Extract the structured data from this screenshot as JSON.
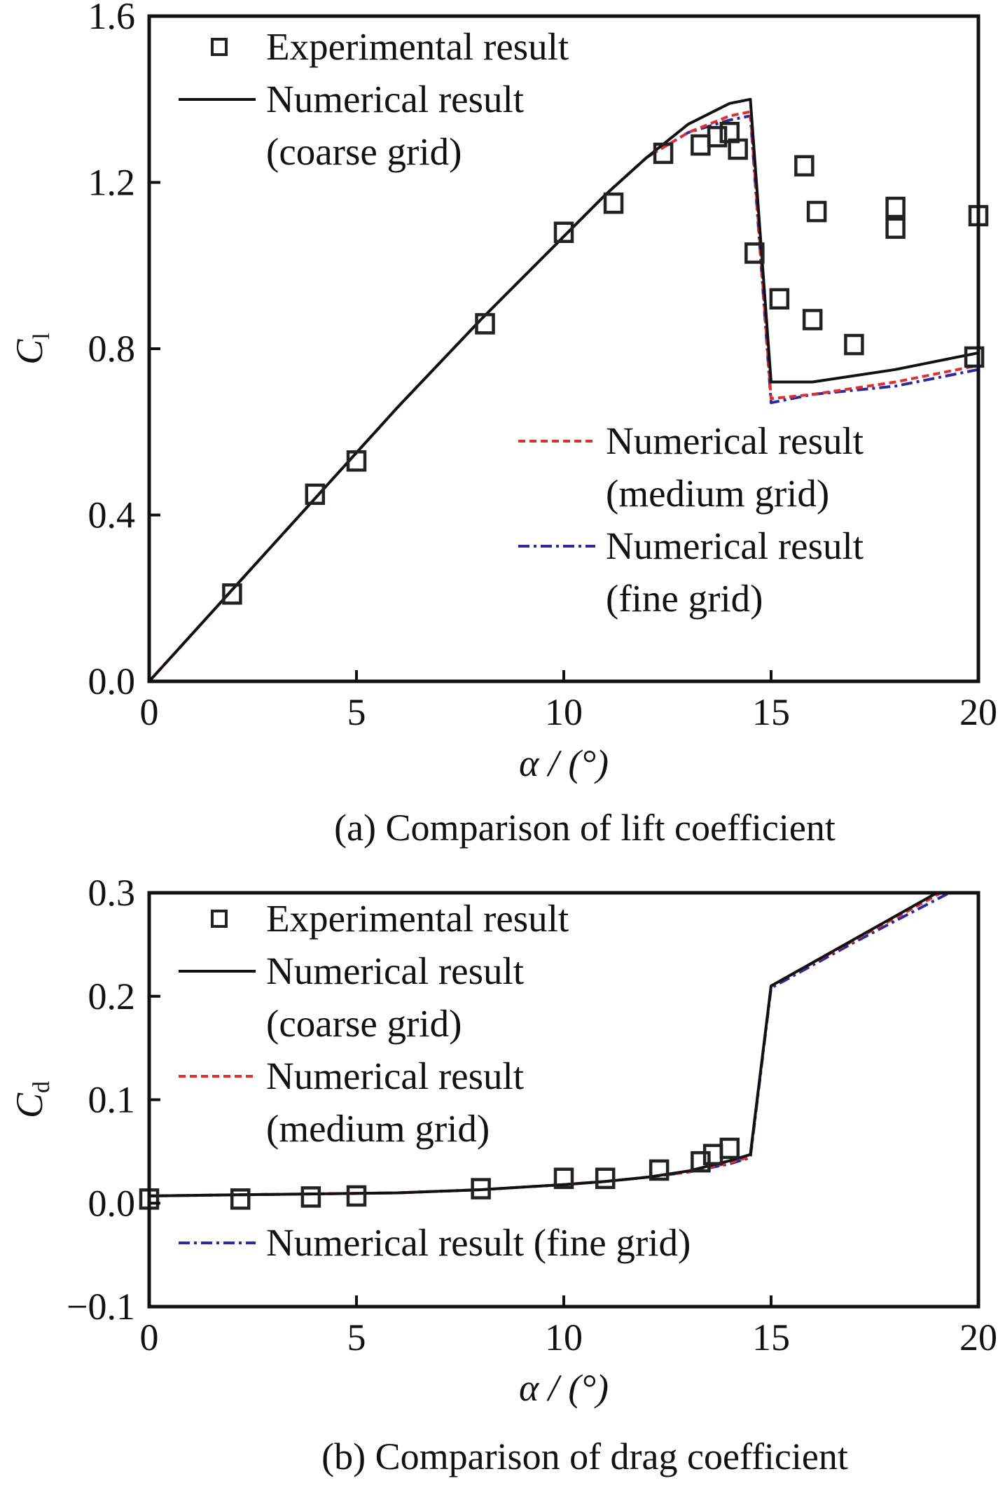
{
  "chart_data": [
    {
      "type": "line",
      "panel": "a",
      "caption": "(a) Comparison of lift coefficient",
      "xlabel": "α / (°)",
      "ylabel_main": "C",
      "ylabel_sub": "l",
      "xlim": [
        0,
        20
      ],
      "ylim": [
        0.0,
        1.6
      ],
      "xticks": [
        0,
        5,
        10,
        15,
        20
      ],
      "xtick_labels": [
        "0",
        "5",
        "10",
        "15",
        "20"
      ],
      "yticks": [
        0.0,
        0.4,
        0.8,
        1.2,
        1.6
      ],
      "ytick_labels": [
        "0.0",
        "0.4",
        "0.8",
        "1.2",
        "1.6"
      ],
      "grid": false,
      "legend": [
        {
          "key": "exp",
          "label_lines": [
            "Experimental result"
          ],
          "placement": "top-left"
        },
        {
          "key": "coarse",
          "label_lines": [
            "Numerical result",
            "(coarse grid)"
          ],
          "placement": "top-left"
        },
        {
          "key": "medium",
          "label_lines": [
            "Numerical result",
            "(medium grid)"
          ],
          "placement": "lower-right"
        },
        {
          "key": "fine",
          "label_lines": [
            "Numerical result",
            "(fine grid)"
          ],
          "placement": "lower-right"
        }
      ],
      "series": [
        {
          "key": "exp",
          "name": "Experimental result",
          "style": "square-marker",
          "color": "#222222",
          "x": [
            2.0,
            4.0,
            5.0,
            8.1,
            10.0,
            11.2,
            12.4,
            13.3,
            13.7,
            14.0,
            14.2,
            14.6,
            15.2,
            15.8,
            16.0,
            16.1,
            17.0,
            18.0,
            18.0,
            20.0,
            19.9
          ],
          "y": [
            0.21,
            0.45,
            0.53,
            0.86,
            1.08,
            1.15,
            1.27,
            1.29,
            1.31,
            1.32,
            1.28,
            1.03,
            0.92,
            1.24,
            0.87,
            1.13,
            0.81,
            1.14,
            1.09,
            1.12,
            0.78
          ]
        },
        {
          "key": "coarse",
          "name": "Numerical result (coarse grid)",
          "style": "solid",
          "color": "#111111",
          "x": [
            0,
            2,
            4,
            6,
            8,
            10,
            11,
            12,
            13,
            14,
            14.5,
            15.0,
            16,
            18,
            20
          ],
          "y": [
            0.0,
            0.22,
            0.44,
            0.66,
            0.87,
            1.07,
            1.17,
            1.26,
            1.34,
            1.39,
            1.4,
            0.72,
            0.72,
            0.75,
            0.79
          ]
        },
        {
          "key": "medium",
          "name": "Numerical result (medium grid)",
          "style": "dashed",
          "color": "#e03030",
          "x": [
            0,
            2,
            4,
            6,
            8,
            10,
            11,
            12,
            13,
            14,
            14.5,
            15.0,
            16,
            18,
            20
          ],
          "y": [
            0.0,
            0.22,
            0.44,
            0.66,
            0.87,
            1.07,
            1.17,
            1.26,
            1.32,
            1.36,
            1.37,
            0.68,
            0.69,
            0.72,
            0.76
          ]
        },
        {
          "key": "fine",
          "name": "Numerical result (fine grid)",
          "style": "dash-dot",
          "color": "#2a2aa0",
          "x": [
            0,
            2,
            4,
            6,
            8,
            10,
            11,
            12,
            13,
            14,
            14.5,
            15.0,
            16,
            18,
            20
          ],
          "y": [
            0.0,
            0.22,
            0.44,
            0.66,
            0.87,
            1.07,
            1.17,
            1.26,
            1.32,
            1.35,
            1.36,
            0.67,
            0.69,
            0.71,
            0.75
          ]
        }
      ]
    },
    {
      "type": "line",
      "panel": "b",
      "caption": "(b) Comparison of drag coefficient",
      "xlabel": "α / (°)",
      "ylabel_main": "C",
      "ylabel_sub": "d",
      "xlim": [
        0,
        20
      ],
      "ylim": [
        -0.1,
        0.3
      ],
      "xticks": [
        0,
        5,
        10,
        15,
        20
      ],
      "xtick_labels": [
        "0",
        "5",
        "10",
        "15",
        "20"
      ],
      "yticks": [
        -0.1,
        0.0,
        0.1,
        0.2,
        0.3
      ],
      "ytick_labels": [
        "−0.1",
        "0.0",
        "0.1",
        "0.2",
        "0.3"
      ],
      "grid": false,
      "legend": [
        {
          "key": "exp",
          "label_lines": [
            "Experimental result"
          ],
          "placement": "top-left"
        },
        {
          "key": "coarse",
          "label_lines": [
            "Numerical result",
            "(coarse grid)"
          ],
          "placement": "top-left"
        },
        {
          "key": "medium",
          "label_lines": [
            "Numerical result",
            "(medium grid)"
          ],
          "placement": "top-left"
        },
        {
          "key": "fine",
          "label_lines": [
            "Numerical result (fine grid)"
          ],
          "placement": "lower-left"
        }
      ],
      "series": [
        {
          "key": "exp",
          "name": "Experimental result",
          "style": "square-marker",
          "color": "#222222",
          "x": [
            0.0,
            2.2,
            3.9,
            5.0,
            8.0,
            10.0,
            11.0,
            12.3,
            13.3,
            13.6,
            14.0
          ],
          "y": [
            0.004,
            0.004,
            0.006,
            0.007,
            0.014,
            0.024,
            0.024,
            0.032,
            0.04,
            0.047,
            0.053
          ]
        },
        {
          "key": "coarse",
          "name": "Numerical result (coarse grid)",
          "style": "solid",
          "color": "#111111",
          "x": [
            0,
            2,
            4,
            6,
            8,
            10,
            11,
            12,
            13,
            14,
            14.5,
            15.0,
            17,
            19.0
          ],
          "y": [
            0.007,
            0.008,
            0.009,
            0.01,
            0.013,
            0.018,
            0.021,
            0.025,
            0.031,
            0.041,
            0.047,
            0.21,
            0.255,
            0.3
          ]
        },
        {
          "key": "medium",
          "name": "Numerical result (medium grid)",
          "style": "dashed",
          "color": "#e03030",
          "x": [
            0,
            2,
            4,
            6,
            8,
            10,
            11,
            12,
            13,
            14,
            14.5,
            15.0,
            17,
            19.1
          ],
          "y": [
            0.007,
            0.008,
            0.009,
            0.01,
            0.013,
            0.018,
            0.021,
            0.025,
            0.03,
            0.039,
            0.045,
            0.21,
            0.254,
            0.3
          ]
        },
        {
          "key": "fine",
          "name": "Numerical result (fine grid)",
          "style": "dash-dot",
          "color": "#2a2aa0",
          "x": [
            0,
            2,
            4,
            6,
            8,
            10,
            11,
            12,
            13,
            14,
            14.5,
            15.0,
            17,
            19.3
          ],
          "y": [
            0.007,
            0.008,
            0.009,
            0.01,
            0.013,
            0.018,
            0.021,
            0.025,
            0.03,
            0.038,
            0.044,
            0.208,
            0.252,
            0.3
          ]
        }
      ]
    }
  ]
}
